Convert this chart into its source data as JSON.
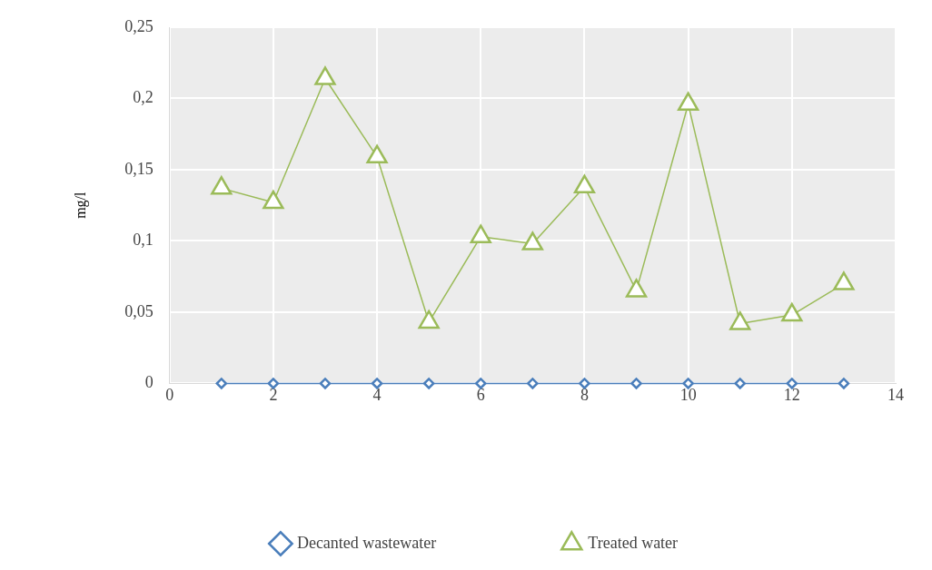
{
  "chart_data": {
    "type": "line",
    "ylabel": "mg/l",
    "x": [
      1,
      2,
      3,
      4,
      5,
      6,
      7,
      8,
      9,
      10,
      11,
      12,
      13
    ],
    "series": [
      {
        "name": "Decanted wastewater",
        "color": "#4a7ebb",
        "marker": "diamond",
        "values": [
          0,
          0,
          0,
          0,
          0,
          0,
          0,
          0,
          0,
          0,
          0,
          0,
          0
        ]
      },
      {
        "name": "Treated water",
        "color": "#9bbb59",
        "marker": "triangle",
        "values": [
          0.137,
          0.127,
          0.214,
          0.159,
          0.043,
          0.103,
          0.098,
          0.138,
          0.065,
          0.196,
          0.042,
          0.048,
          0.07
        ]
      }
    ],
    "xlim": [
      0,
      14
    ],
    "xticks": [
      0,
      2,
      4,
      6,
      8,
      10,
      12,
      14
    ],
    "ylim": [
      0,
      0.25
    ],
    "yticks": [
      0,
      {
        "value": 0.05,
        "label": "0,05"
      },
      {
        "value": 0.1,
        "label": "0,1"
      },
      {
        "value": 0.15,
        "label": "0,15"
      },
      {
        "value": 0.2,
        "label": "0,2"
      },
      {
        "value": 0.25,
        "label": "0,25"
      }
    ],
    "grid": true,
    "legend": "bottom",
    "line_style": "solid"
  }
}
